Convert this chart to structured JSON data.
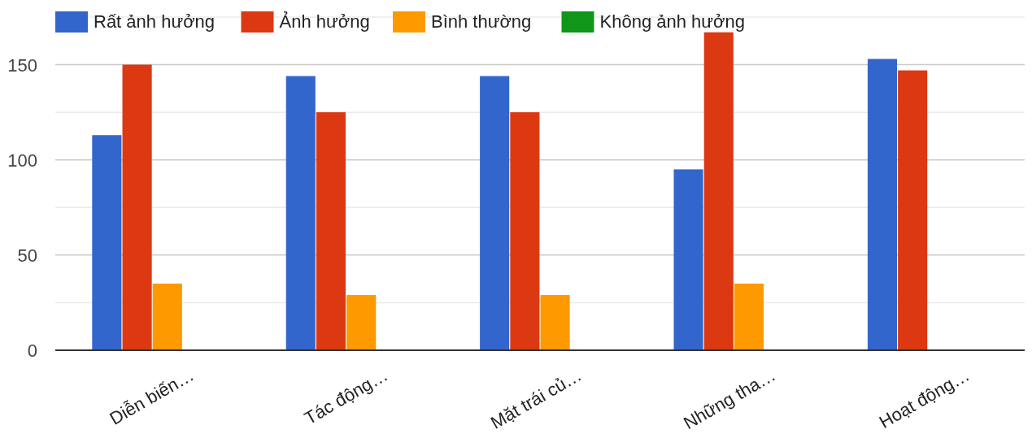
{
  "chart_data": {
    "type": "bar",
    "categories": [
      "Diễn biến…",
      "Tác động…",
      "Mặt trái củ…",
      "Những tha…",
      "Hoạt động…"
    ],
    "series": [
      {
        "name": "Rất ảnh hưởng",
        "color": "#3366cc",
        "values": [
          113,
          144,
          144,
          95,
          153
        ]
      },
      {
        "name": "Ảnh hưởng",
        "color": "#dc3912",
        "values": [
          150,
          125,
          125,
          167,
          147
        ]
      },
      {
        "name": "Bình thường",
        "color": "#ff9900",
        "values": [
          35,
          29,
          29,
          35,
          0
        ]
      },
      {
        "name": "Không ảnh hưởng",
        "color": "#109618",
        "values": [
          0,
          0,
          0,
          0,
          0
        ]
      }
    ],
    "ylim": [
      0,
      175
    ],
    "yticks": [
      0,
      {
        "value": 25,
        "label": null
      },
      50,
      {
        "value": 75,
        "label": null
      },
      100,
      {
        "value": 125,
        "label": null
      },
      150,
      {
        "value": 175,
        "label": null
      }
    ],
    "grid": "y",
    "legend": "top left"
  }
}
